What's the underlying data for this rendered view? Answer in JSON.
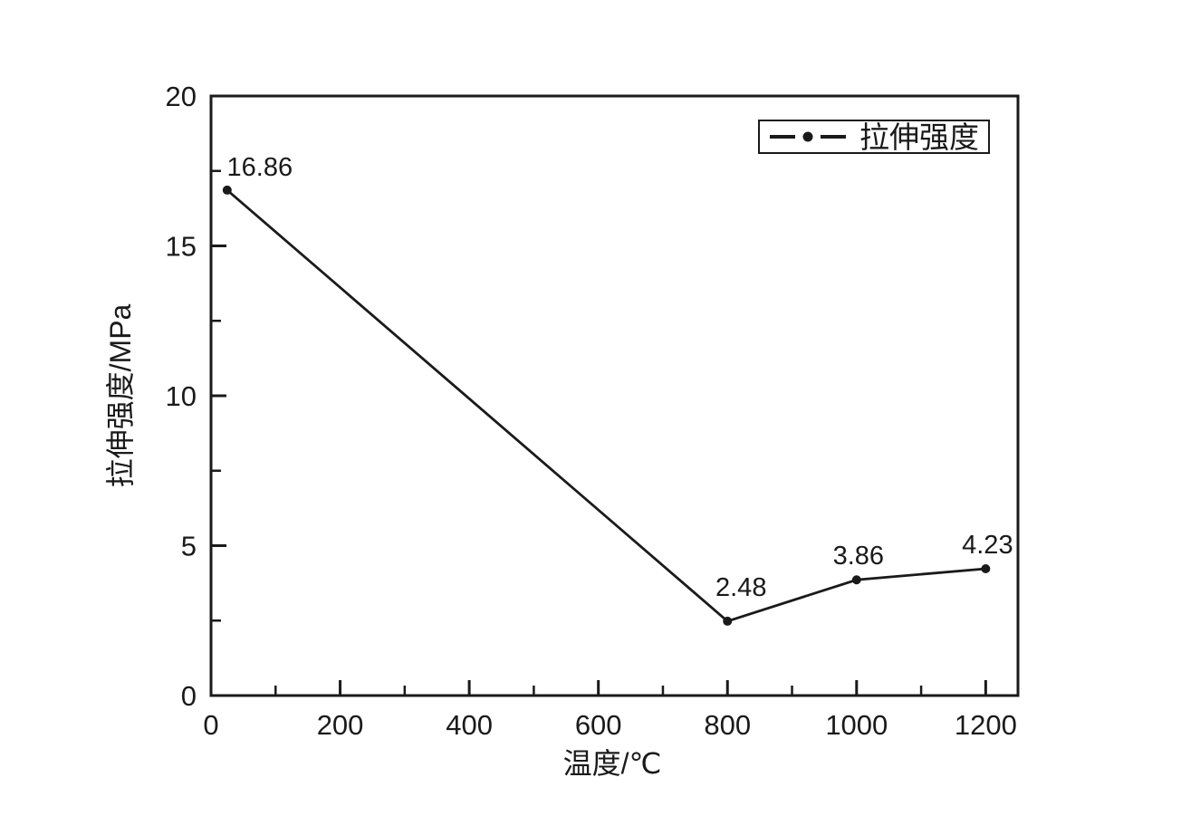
{
  "colors": {
    "line": "#1a1a1a",
    "text": "#1a1a1a",
    "background": "#ffffff"
  },
  "legend": {
    "symbol": "dash-dot-dash-line",
    "label": "拉伸强度"
  },
  "chart_data": {
    "type": "line",
    "title": "",
    "xlabel": "温度/℃",
    "ylabel": "拉伸强度/MPa",
    "xlim": [
      0,
      1250
    ],
    "ylim": [
      0,
      20
    ],
    "x_major_ticks": [
      0,
      200,
      400,
      600,
      800,
      1000,
      1200
    ],
    "x_minor_step": 100,
    "y_major_ticks": [
      0,
      5,
      10,
      15,
      20
    ],
    "y_minor_step": 2.5,
    "grid": false,
    "legend_position": "top-right",
    "series": [
      {
        "name": "拉伸强度",
        "marker": "filled-circle",
        "x": [
          25,
          800,
          1000,
          1200
        ],
        "y": [
          16.86,
          2.48,
          3.86,
          4.23
        ],
        "point_labels": [
          "16.86",
          "2.48",
          "3.86",
          "4.23"
        ]
      }
    ]
  }
}
